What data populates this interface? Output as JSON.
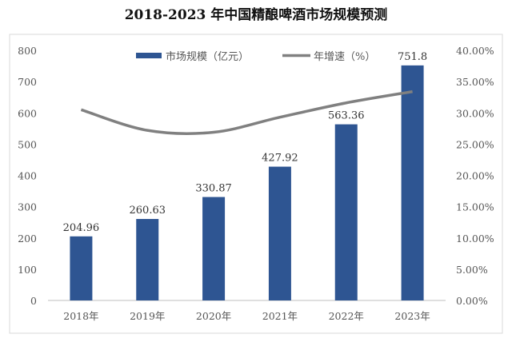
{
  "chart_data": {
    "type": "bar",
    "title": "2018-2023 年中国精酿啤酒市场规模预测",
    "categories": [
      "2018年",
      "2019年",
      "2020年",
      "2021年",
      "2022年",
      "2023年"
    ],
    "series": [
      {
        "name": "市场规模（亿元）",
        "type": "bar",
        "axis": "left",
        "values": [
          204.96,
          260.63,
          330.87,
          427.92,
          563.36,
          751.8
        ],
        "labels": [
          "204.96",
          "260.63",
          "330.87",
          "427.92",
          "563.36",
          "751.8"
        ],
        "color": "#2e5592"
      },
      {
        "name": "年增速（%）",
        "type": "line",
        "axis": "right",
        "values": [
          30.5,
          27.2,
          26.9,
          29.3,
          31.6,
          33.4
        ],
        "color": "#808080"
      }
    ],
    "ylim": [
      0,
      800
    ],
    "yticks": [
      "0",
      "100",
      "200",
      "300",
      "400",
      "500",
      "600",
      "700",
      "800"
    ],
    "y2lim": [
      0,
      40
    ],
    "y2ticks": [
      "0.00%",
      "5.00%",
      "10.00%",
      "15.00%",
      "20.00%",
      "25.00%",
      "30.00%",
      "35.00%",
      "40.00%"
    ],
    "grid": false,
    "legend": "top"
  }
}
